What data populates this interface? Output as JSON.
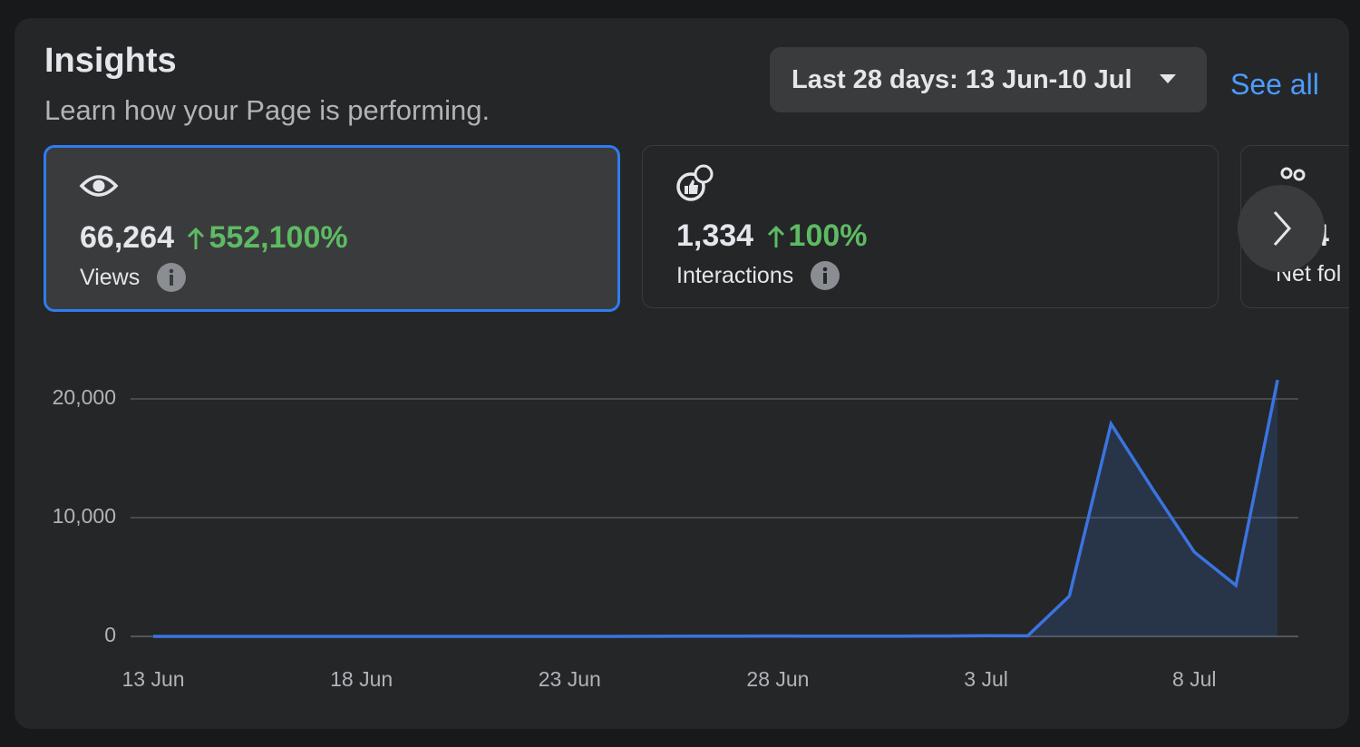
{
  "header": {
    "title": "Insights",
    "subtitle": "Learn how your Page is performing."
  },
  "date_range": "Last 28 days: 13 Jun-10 Jul",
  "see_all": "See all",
  "metrics": [
    {
      "value": "66,264",
      "change": "552,100%",
      "label": "Views"
    },
    {
      "value": "1,334",
      "change": "100%",
      "label": "Interactions"
    },
    {
      "value": "4",
      "label": "Net fol"
    }
  ],
  "chart_data": {
    "type": "area",
    "categories": [
      "13 Jun",
      null,
      null,
      null,
      null,
      "18 Jun",
      null,
      null,
      null,
      null,
      "23 Jun",
      null,
      null,
      null,
      null,
      "28 Jun",
      null,
      null,
      null,
      null,
      "3 Jul",
      null,
      null,
      null,
      null,
      "8 Jul",
      null,
      null
    ],
    "series": [
      {
        "name": "Views",
        "color": "#3a74e0",
        "values": [
          0,
          0,
          0,
          0,
          0,
          0,
          0,
          0,
          0,
          0,
          0,
          0,
          10,
          20,
          20,
          30,
          20,
          20,
          20,
          30,
          60,
          50,
          3400,
          17900,
          12400,
          7100,
          4300,
          21600
        ]
      }
    ],
    "ylim": [
      0,
      22000
    ],
    "yticks": [
      0,
      {
        "value": 10000,
        "label": "10,000"
      },
      {
        "value": 20000,
        "label": "20,000"
      }
    ],
    "grid": true
  }
}
